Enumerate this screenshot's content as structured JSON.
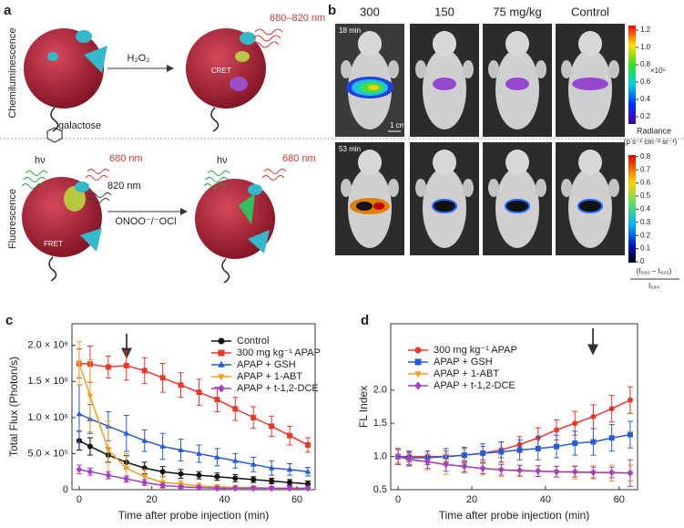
{
  "figure": {
    "a": {
      "panel": "a",
      "row_labels": [
        "Chemiluminescence",
        "Fluorescence"
      ],
      "galactose": "galactose",
      "reagent_top": "H₂O₂",
      "cret": "CRET",
      "emission_top": "680–820 nm",
      "hv_left": "hν",
      "emission_left": "680 nm",
      "emission_820": "820 nm",
      "reagent_bottom": "ONOO⁻/⁻OCl",
      "fret": "FRET",
      "hv_right": "hν",
      "emission_right": "680 nm"
    },
    "b": {
      "panel": "b",
      "columns": [
        "300",
        "150",
        "75 mg/kg",
        "Control"
      ],
      "times": [
        "18 min",
        "53 min"
      ],
      "scale_bar": "1 cm",
      "colorbar_top": {
        "ticks": [
          0.2,
          0.4,
          0.6,
          0.8,
          {
            "value": 1,
            "label": "1.0"
          },
          1.2
        ],
        "multiplier": "×10⁵",
        "title": [
          "Radiance",
          "(p s⁻¹ cm⁻² sr⁻¹)"
        ]
      },
      "colorbar_bottom": {
        "ticks": [
          0,
          0.1,
          0.2,
          0.3,
          0.4,
          0.5,
          0.6,
          0.7,
          0.8
        ],
        "numerator": "(I₆₈₀ − I₈₂₀)",
        "denominator": "I₆₈₀"
      }
    }
  },
  "chart_data": [
    {
      "type": "line",
      "panel": "c",
      "xlabel": "Time after probe injection (min)",
      "ylabel": "Total Flux (Photon/s)",
      "x": [
        0,
        3,
        8,
        13,
        18,
        23,
        28,
        33,
        38,
        43,
        48,
        53,
        58,
        63
      ],
      "xlim": [
        -2,
        65
      ],
      "xticks": [
        0,
        20,
        40,
        60
      ],
      "ylim": [
        0,
        2300000
      ],
      "yticks": [
        0,
        {
          "value": 500000,
          "label": "5.0 × 10⁵"
        },
        {
          "value": 1000000,
          "label": "1.0 × 10⁶"
        },
        {
          "value": 1500000,
          "label": "1.5 × 10⁶"
        },
        {
          "value": 2000000,
          "label": "2.0 × 10⁶"
        }
      ],
      "series": [
        {
          "name": "Control",
          "color": "#111111",
          "marker": "circle",
          "values": [
            680000,
            600000,
            480000,
            380000,
            300000,
            250000,
            220000,
            200000,
            180000,
            160000,
            140000,
            120000,
            100000,
            80000
          ],
          "errors": [
            130000,
            120000,
            100000,
            90000,
            80000,
            70000,
            60000,
            50000,
            50000,
            50000,
            40000,
            40000,
            40000,
            40000
          ]
        },
        {
          "name": "300 mg kg⁻¹ APAP",
          "color": "#e8382a",
          "marker": "square",
          "values": [
            1750000,
            1740000,
            1700000,
            1720000,
            1650000,
            1550000,
            1450000,
            1350000,
            1250000,
            1120000,
            1000000,
            880000,
            750000,
            620000
          ],
          "errors": [
            200000,
            250000,
            150000,
            200000,
            180000,
            200000,
            170000,
            180000,
            170000,
            160000,
            150000,
            140000,
            130000,
            100000
          ]
        },
        {
          "name": "APAP + GSH",
          "color": "#2a5bd7",
          "marker": "triangle-up",
          "values": [
            1050000,
            980000,
            880000,
            780000,
            680000,
            600000,
            550000,
            500000,
            450000,
            400000,
            350000,
            300000,
            280000,
            250000
          ],
          "errors": [
            400000,
            200000,
            200000,
            250000,
            150000,
            180000,
            150000,
            120000,
            120000,
            100000,
            100000,
            100000,
            80000,
            60000
          ]
        },
        {
          "name": "APAP + 1-ABT",
          "color": "#f0a020",
          "marker": "triangle-down",
          "values": [
            1750000,
            1300000,
            550000,
            300000,
            180000,
            100000,
            80000,
            50000,
            40000,
            30000,
            30000,
            20000,
            20000,
            20000
          ],
          "errors": [
            300000,
            500000,
            400000,
            200000,
            100000,
            80000,
            50000,
            40000,
            30000,
            30000,
            20000,
            20000,
            20000,
            20000
          ]
        },
        {
          "name": "APAP + t-1,2-DCE",
          "color": "#a040c0",
          "marker": "diamond",
          "values": [
            280000,
            250000,
            200000,
            150000,
            100000,
            60000,
            40000,
            30000,
            20000,
            20000,
            20000,
            20000,
            20000,
            20000
          ],
          "errors": [
            60000,
            50000,
            50000,
            40000,
            40000,
            30000,
            20000,
            20000,
            20000,
            20000,
            20000,
            20000,
            20000,
            20000
          ]
        }
      ]
    },
    {
      "type": "line",
      "panel": "d",
      "xlabel": "Time after probe injection (min)",
      "ylabel": "FL Index",
      "x": [
        0,
        3,
        8,
        13,
        18,
        23,
        28,
        33,
        38,
        43,
        48,
        53,
        58,
        63
      ],
      "xlim": [
        -2,
        65
      ],
      "xticks": [
        0,
        20,
        40,
        60
      ],
      "ylim": [
        0.5,
        3.0
      ],
      "yticks": [
        0.5,
        {
          "value": 1,
          "label": "1.0"
        },
        1.5,
        {
          "value": 2,
          "label": "2.0"
        }
      ],
      "series": [
        {
          "name": "300 mg kg⁻¹ APAP",
          "color": "#e8382a",
          "marker": "circle",
          "values": [
            1.0,
            1.0,
            1.0,
            1.0,
            1.02,
            1.05,
            1.1,
            1.18,
            1.28,
            1.4,
            1.5,
            1.6,
            1.72,
            1.85
          ],
          "errors": [
            0.1,
            0.08,
            0.08,
            0.08,
            0.1,
            0.1,
            0.12,
            0.12,
            0.15,
            0.15,
            0.18,
            0.18,
            0.2,
            0.2
          ]
        },
        {
          "name": "APAP + GSH",
          "color": "#2a5bd7",
          "marker": "square",
          "values": [
            1.0,
            0.98,
            0.98,
            1.0,
            1.02,
            1.05,
            1.07,
            1.1,
            1.12,
            1.15,
            1.2,
            1.22,
            1.28,
            1.33
          ],
          "errors": [
            0.12,
            0.1,
            0.1,
            0.12,
            0.12,
            0.14,
            0.15,
            0.15,
            0.17,
            0.17,
            0.18,
            0.2,
            0.2,
            0.2
          ]
        },
        {
          "name": "APAP + 1-ABT",
          "color": "#f0a020",
          "marker": "triangle-down",
          "values": [
            1.0,
            0.95,
            0.92,
            0.88,
            0.85,
            0.82,
            0.8,
            0.78,
            0.78,
            0.77,
            0.76,
            0.76,
            0.75,
            0.75
          ],
          "errors": [
            0.1,
            0.1,
            0.12,
            0.15,
            0.1,
            0.1,
            0.1,
            0.08,
            0.08,
            0.08,
            0.1,
            0.1,
            0.12,
            0.12
          ]
        },
        {
          "name": "APAP + t-1,2-DCE",
          "color": "#a040c0",
          "marker": "diamond",
          "values": [
            1.0,
            0.96,
            0.92,
            0.88,
            0.85,
            0.82,
            0.8,
            0.79,
            0.78,
            0.77,
            0.77,
            0.76,
            0.76,
            0.75
          ],
          "errors": [
            0.12,
            0.1,
            0.1,
            0.1,
            0.08,
            0.08,
            0.08,
            0.08,
            0.08,
            0.08,
            0.08,
            0.08,
            0.08,
            0.2
          ]
        }
      ]
    }
  ]
}
